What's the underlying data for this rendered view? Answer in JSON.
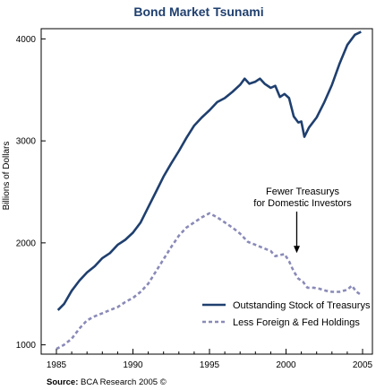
{
  "chart_data": {
    "type": "line",
    "title": "Bond Market Tsunami",
    "ylabel": "Billions of Dollars",
    "xlim": [
      1985,
      2005
    ],
    "ylim": [
      900,
      4100
    ],
    "x_ticks": [
      "1985",
      "1990",
      "1995",
      "2000",
      "2005"
    ],
    "y_ticks": [
      "1000",
      "2000",
      "3000",
      "4000"
    ],
    "grid": false,
    "legend_position": "bottom-right",
    "series": [
      {
        "name": "Outstanding Stock of Treasurys",
        "style": "solid",
        "color": "#1f3f6e",
        "points": [
          [
            1985.1,
            1340
          ],
          [
            1985.5,
            1400
          ],
          [
            1986.0,
            1530
          ],
          [
            1986.5,
            1630
          ],
          [
            1987.0,
            1710
          ],
          [
            1987.5,
            1770
          ],
          [
            1988.0,
            1850
          ],
          [
            1988.5,
            1900
          ],
          [
            1989.0,
            1980
          ],
          [
            1989.5,
            2030
          ],
          [
            1990.0,
            2100
          ],
          [
            1990.5,
            2200
          ],
          [
            1991.0,
            2350
          ],
          [
            1991.5,
            2500
          ],
          [
            1992.0,
            2650
          ],
          [
            1992.5,
            2780
          ],
          [
            1993.0,
            2900
          ],
          [
            1993.5,
            3030
          ],
          [
            1994.0,
            3150
          ],
          [
            1994.5,
            3230
          ],
          [
            1995.0,
            3300
          ],
          [
            1995.5,
            3380
          ],
          [
            1996.0,
            3420
          ],
          [
            1996.5,
            3480
          ],
          [
            1997.0,
            3550
          ],
          [
            1997.3,
            3610
          ],
          [
            1997.6,
            3560
          ],
          [
            1998.0,
            3580
          ],
          [
            1998.3,
            3610
          ],
          [
            1998.6,
            3560
          ],
          [
            1999.0,
            3520
          ],
          [
            1999.3,
            3540
          ],
          [
            1999.6,
            3430
          ],
          [
            1999.9,
            3460
          ],
          [
            2000.2,
            3420
          ],
          [
            2000.5,
            3240
          ],
          [
            2000.8,
            3180
          ],
          [
            2001.0,
            3190
          ],
          [
            2001.2,
            3040
          ],
          [
            2001.5,
            3130
          ],
          [
            2002.0,
            3230
          ],
          [
            2002.5,
            3380
          ],
          [
            2003.0,
            3550
          ],
          [
            2003.5,
            3760
          ],
          [
            2004.0,
            3940
          ],
          [
            2004.5,
            4040
          ],
          [
            2004.9,
            4070
          ]
        ]
      },
      {
        "name": "Less Foreign & Fed Holdings",
        "style": "dashed",
        "color": "#8a8ab8",
        "points": [
          [
            1985.0,
            960
          ],
          [
            1985.5,
            1000
          ],
          [
            1986.0,
            1060
          ],
          [
            1986.5,
            1160
          ],
          [
            1987.0,
            1240
          ],
          [
            1987.5,
            1280
          ],
          [
            1988.0,
            1310
          ],
          [
            1988.5,
            1340
          ],
          [
            1989.0,
            1370
          ],
          [
            1989.5,
            1420
          ],
          [
            1990.0,
            1460
          ],
          [
            1990.5,
            1520
          ],
          [
            1991.0,
            1600
          ],
          [
            1991.5,
            1720
          ],
          [
            1992.0,
            1840
          ],
          [
            1992.5,
            1960
          ],
          [
            1993.0,
            2070
          ],
          [
            1993.5,
            2150
          ],
          [
            1994.0,
            2200
          ],
          [
            1994.5,
            2250
          ],
          [
            1995.0,
            2290
          ],
          [
            1995.5,
            2250
          ],
          [
            1996.0,
            2200
          ],
          [
            1996.5,
            2150
          ],
          [
            1997.0,
            2090
          ],
          [
            1997.5,
            2010
          ],
          [
            1998.0,
            1980
          ],
          [
            1998.5,
            1950
          ],
          [
            1999.0,
            1920
          ],
          [
            1999.3,
            1870
          ],
          [
            1999.6,
            1880
          ],
          [
            1999.9,
            1890
          ],
          [
            2000.2,
            1820
          ],
          [
            2000.5,
            1720
          ],
          [
            2000.8,
            1650
          ],
          [
            2001.1,
            1620
          ],
          [
            2001.4,
            1560
          ],
          [
            2001.8,
            1560
          ],
          [
            2002.2,
            1550
          ],
          [
            2002.6,
            1530
          ],
          [
            2003.0,
            1520
          ],
          [
            2003.5,
            1520
          ],
          [
            2004.0,
            1540
          ],
          [
            2004.3,
            1580
          ],
          [
            2004.6,
            1520
          ],
          [
            2004.9,
            1490
          ]
        ]
      }
    ],
    "annotation": {
      "lines": [
        "Fewer Treasurys",
        "for Domestic Investors"
      ],
      "arrow_x": 2000.7,
      "arrow_y": 1900
    },
    "source": {
      "label": "Source:",
      "text": " BCA Research 2005 ©"
    }
  }
}
